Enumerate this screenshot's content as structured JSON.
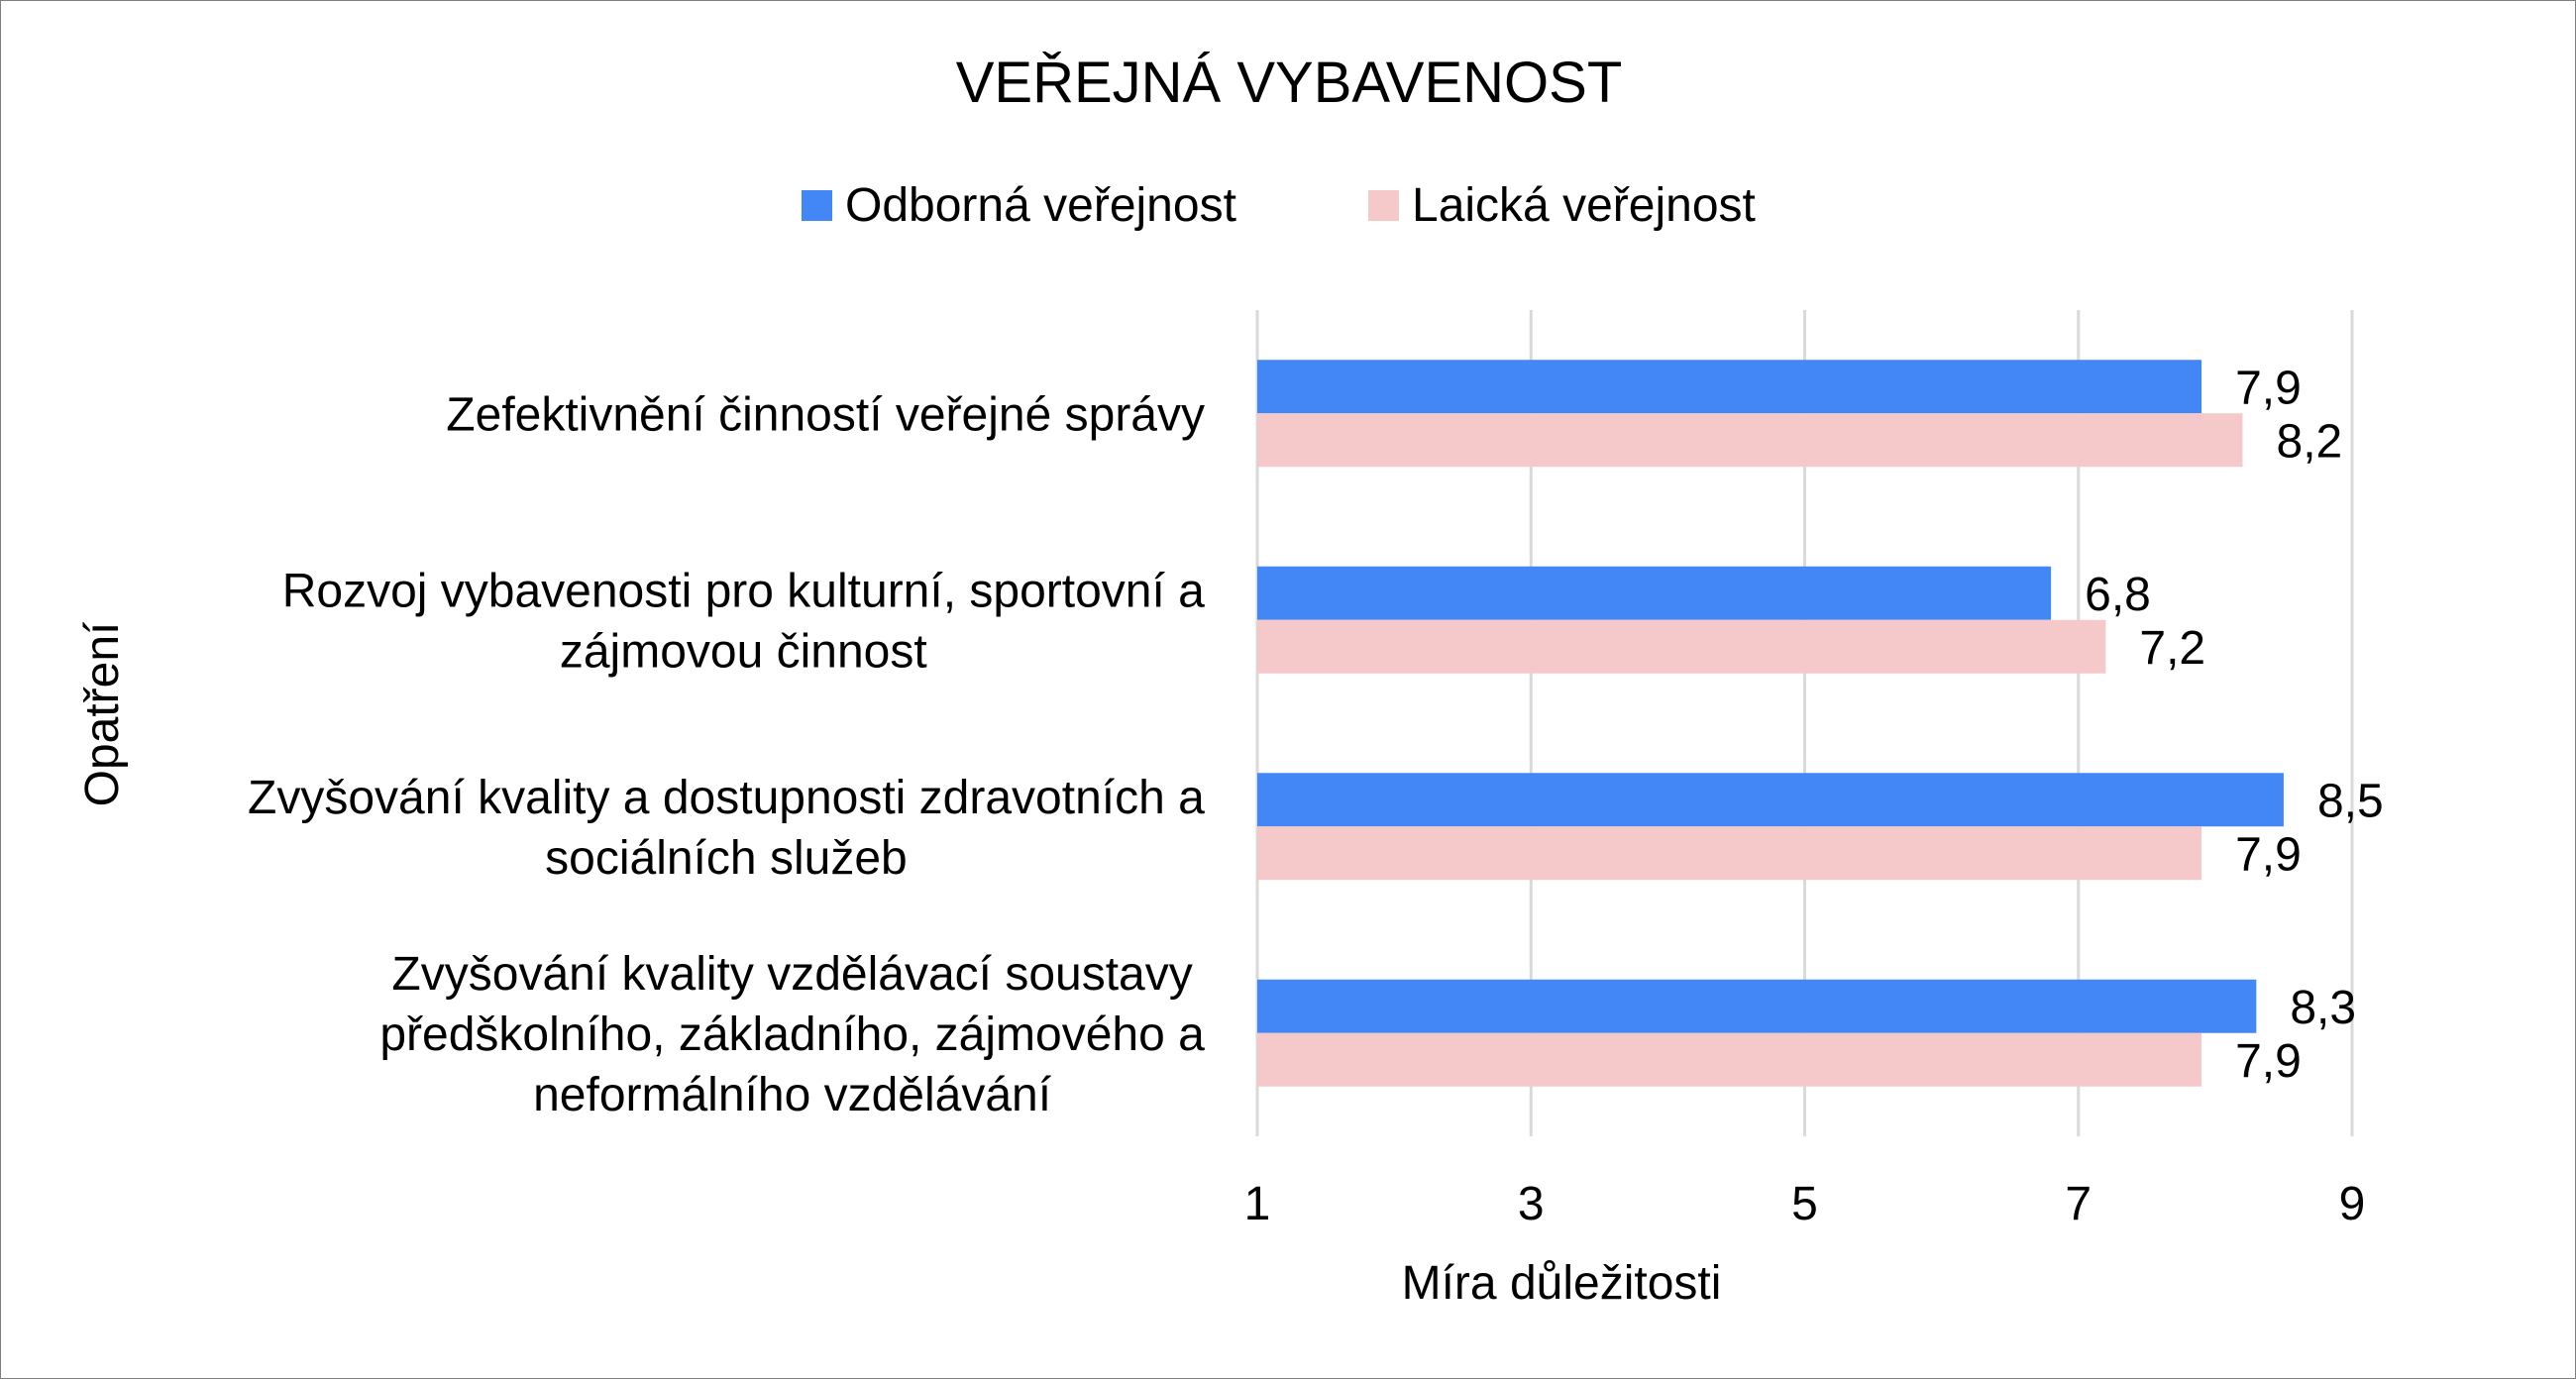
{
  "chart_data": {
    "type": "bar",
    "orientation": "horizontal",
    "title": "VEŘEJNÁ VYBAVENOST",
    "xlabel": "Míra důležitosti",
    "ylabel": "Opatření",
    "xlim": [
      1,
      9
    ],
    "xticks": [
      "1",
      "3",
      "5",
      "7",
      "9"
    ],
    "grid": "vertical",
    "legend_position": "top",
    "categories": [
      [
        "Zefektivnění činností veřejné správy"
      ],
      [
        "Rozvoj vybavenosti pro kulturní, sportovní a",
        "zájmovou činnost"
      ],
      [
        "Zvyšování kvality a dostupnosti zdravotních a",
        "sociálních služeb"
      ],
      [
        "Zvyšování kvality vzdělávací soustavy",
        "předškolního, základního, zájmového a",
        "neformálního vzdělávání"
      ]
    ],
    "series": [
      {
        "name": "Odborná veřejnost",
        "color": "#4287F5",
        "values": [
          7.9,
          6.8,
          8.5,
          8.3
        ],
        "labels": [
          "7,9",
          "6,8",
          "8,5",
          "8,3"
        ]
      },
      {
        "name": "Laická veřejnost",
        "color": "#F5C9C9",
        "values": [
          8.2,
          7.2,
          7.9,
          7.9
        ],
        "labels": [
          "8,2",
          "7,2",
          "7,9",
          "7,9"
        ]
      }
    ]
  }
}
